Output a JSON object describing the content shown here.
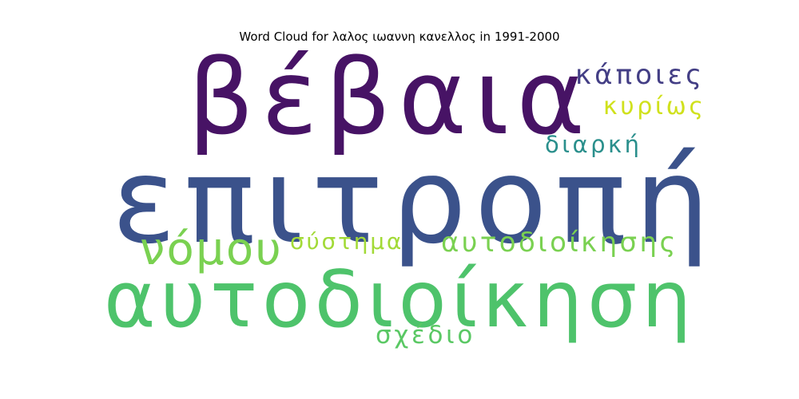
{
  "title": "Word Cloud for λαλος ιωαννη κανελλος in 1991-2000",
  "words": [
    {
      "text": "επιτροπή",
      "color": "#3b528b"
    },
    {
      "text": "βέβαια",
      "color": "#471365"
    },
    {
      "text": "αυτοδιοίκηση",
      "color": "#4ec36b"
    },
    {
      "text": "νόμου",
      "color": "#7ad151"
    },
    {
      "text": "αυτοδιοίκησης",
      "color": "#7ad151"
    },
    {
      "text": "σύστημα",
      "color": "#a2da37"
    },
    {
      "text": "κάποιες",
      "color": "#433e85"
    },
    {
      "text": "κυρίως",
      "color": "#d0e11c"
    },
    {
      "text": "διαρκή",
      "color": "#2a8f8c"
    },
    {
      "text": "σχέδιο",
      "color": "#5ac864"
    }
  ]
}
